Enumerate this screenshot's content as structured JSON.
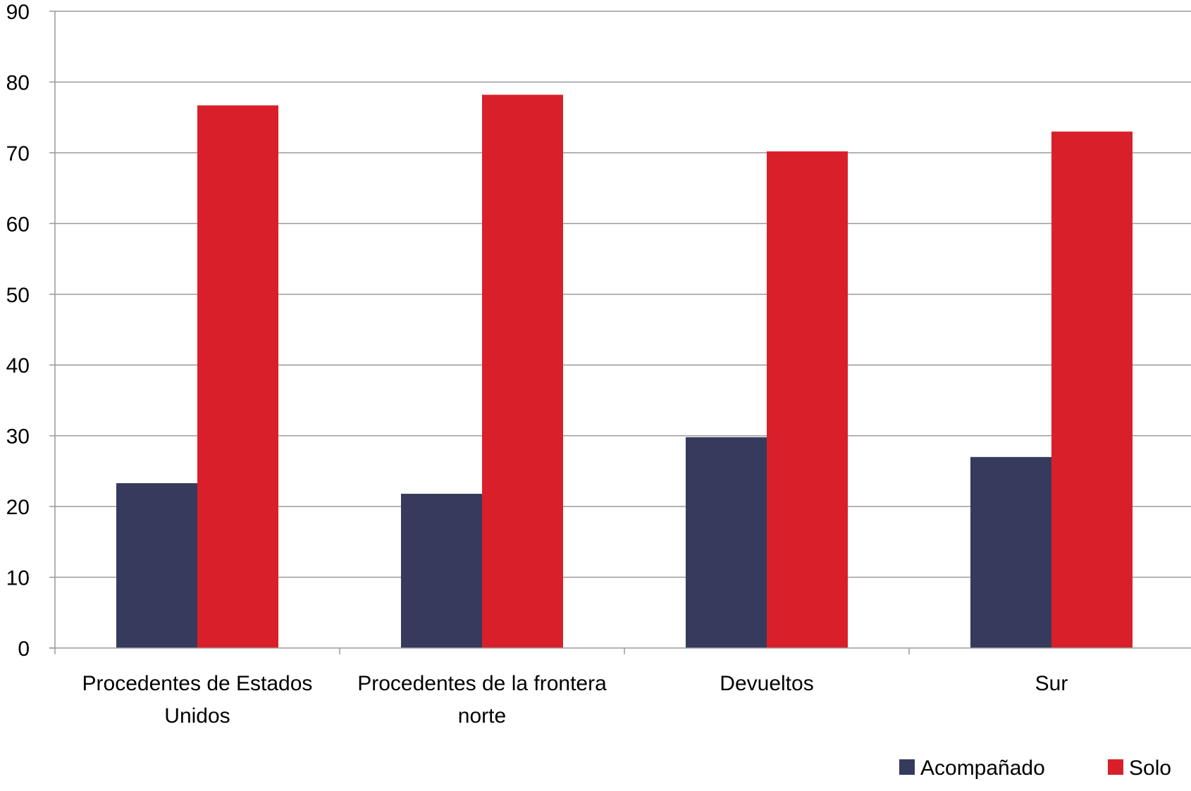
{
  "chart_data": {
    "type": "bar",
    "categories": [
      [
        "Procedentes de Estados",
        "Unidos"
      ],
      [
        "Procedentes de la frontera",
        "norte"
      ],
      [
        "Devueltos"
      ],
      [
        "Sur"
      ]
    ],
    "series": [
      {
        "name": "Acompañado",
        "color": "#363a5c",
        "values": [
          23.3,
          21.8,
          29.8,
          27.0
        ]
      },
      {
        "name": "Solo",
        "color": "#d9202a",
        "values": [
          76.7,
          78.2,
          70.2,
          73.0
        ]
      }
    ],
    "ylim": [
      0,
      90
    ],
    "yticks": [
      "0",
      "10",
      "20",
      "30",
      "40",
      "50",
      "60",
      "70",
      "80",
      "90"
    ],
    "grid": true,
    "legend_position": "bottom-right",
    "title": "",
    "xlabel": "",
    "ylabel": ""
  }
}
